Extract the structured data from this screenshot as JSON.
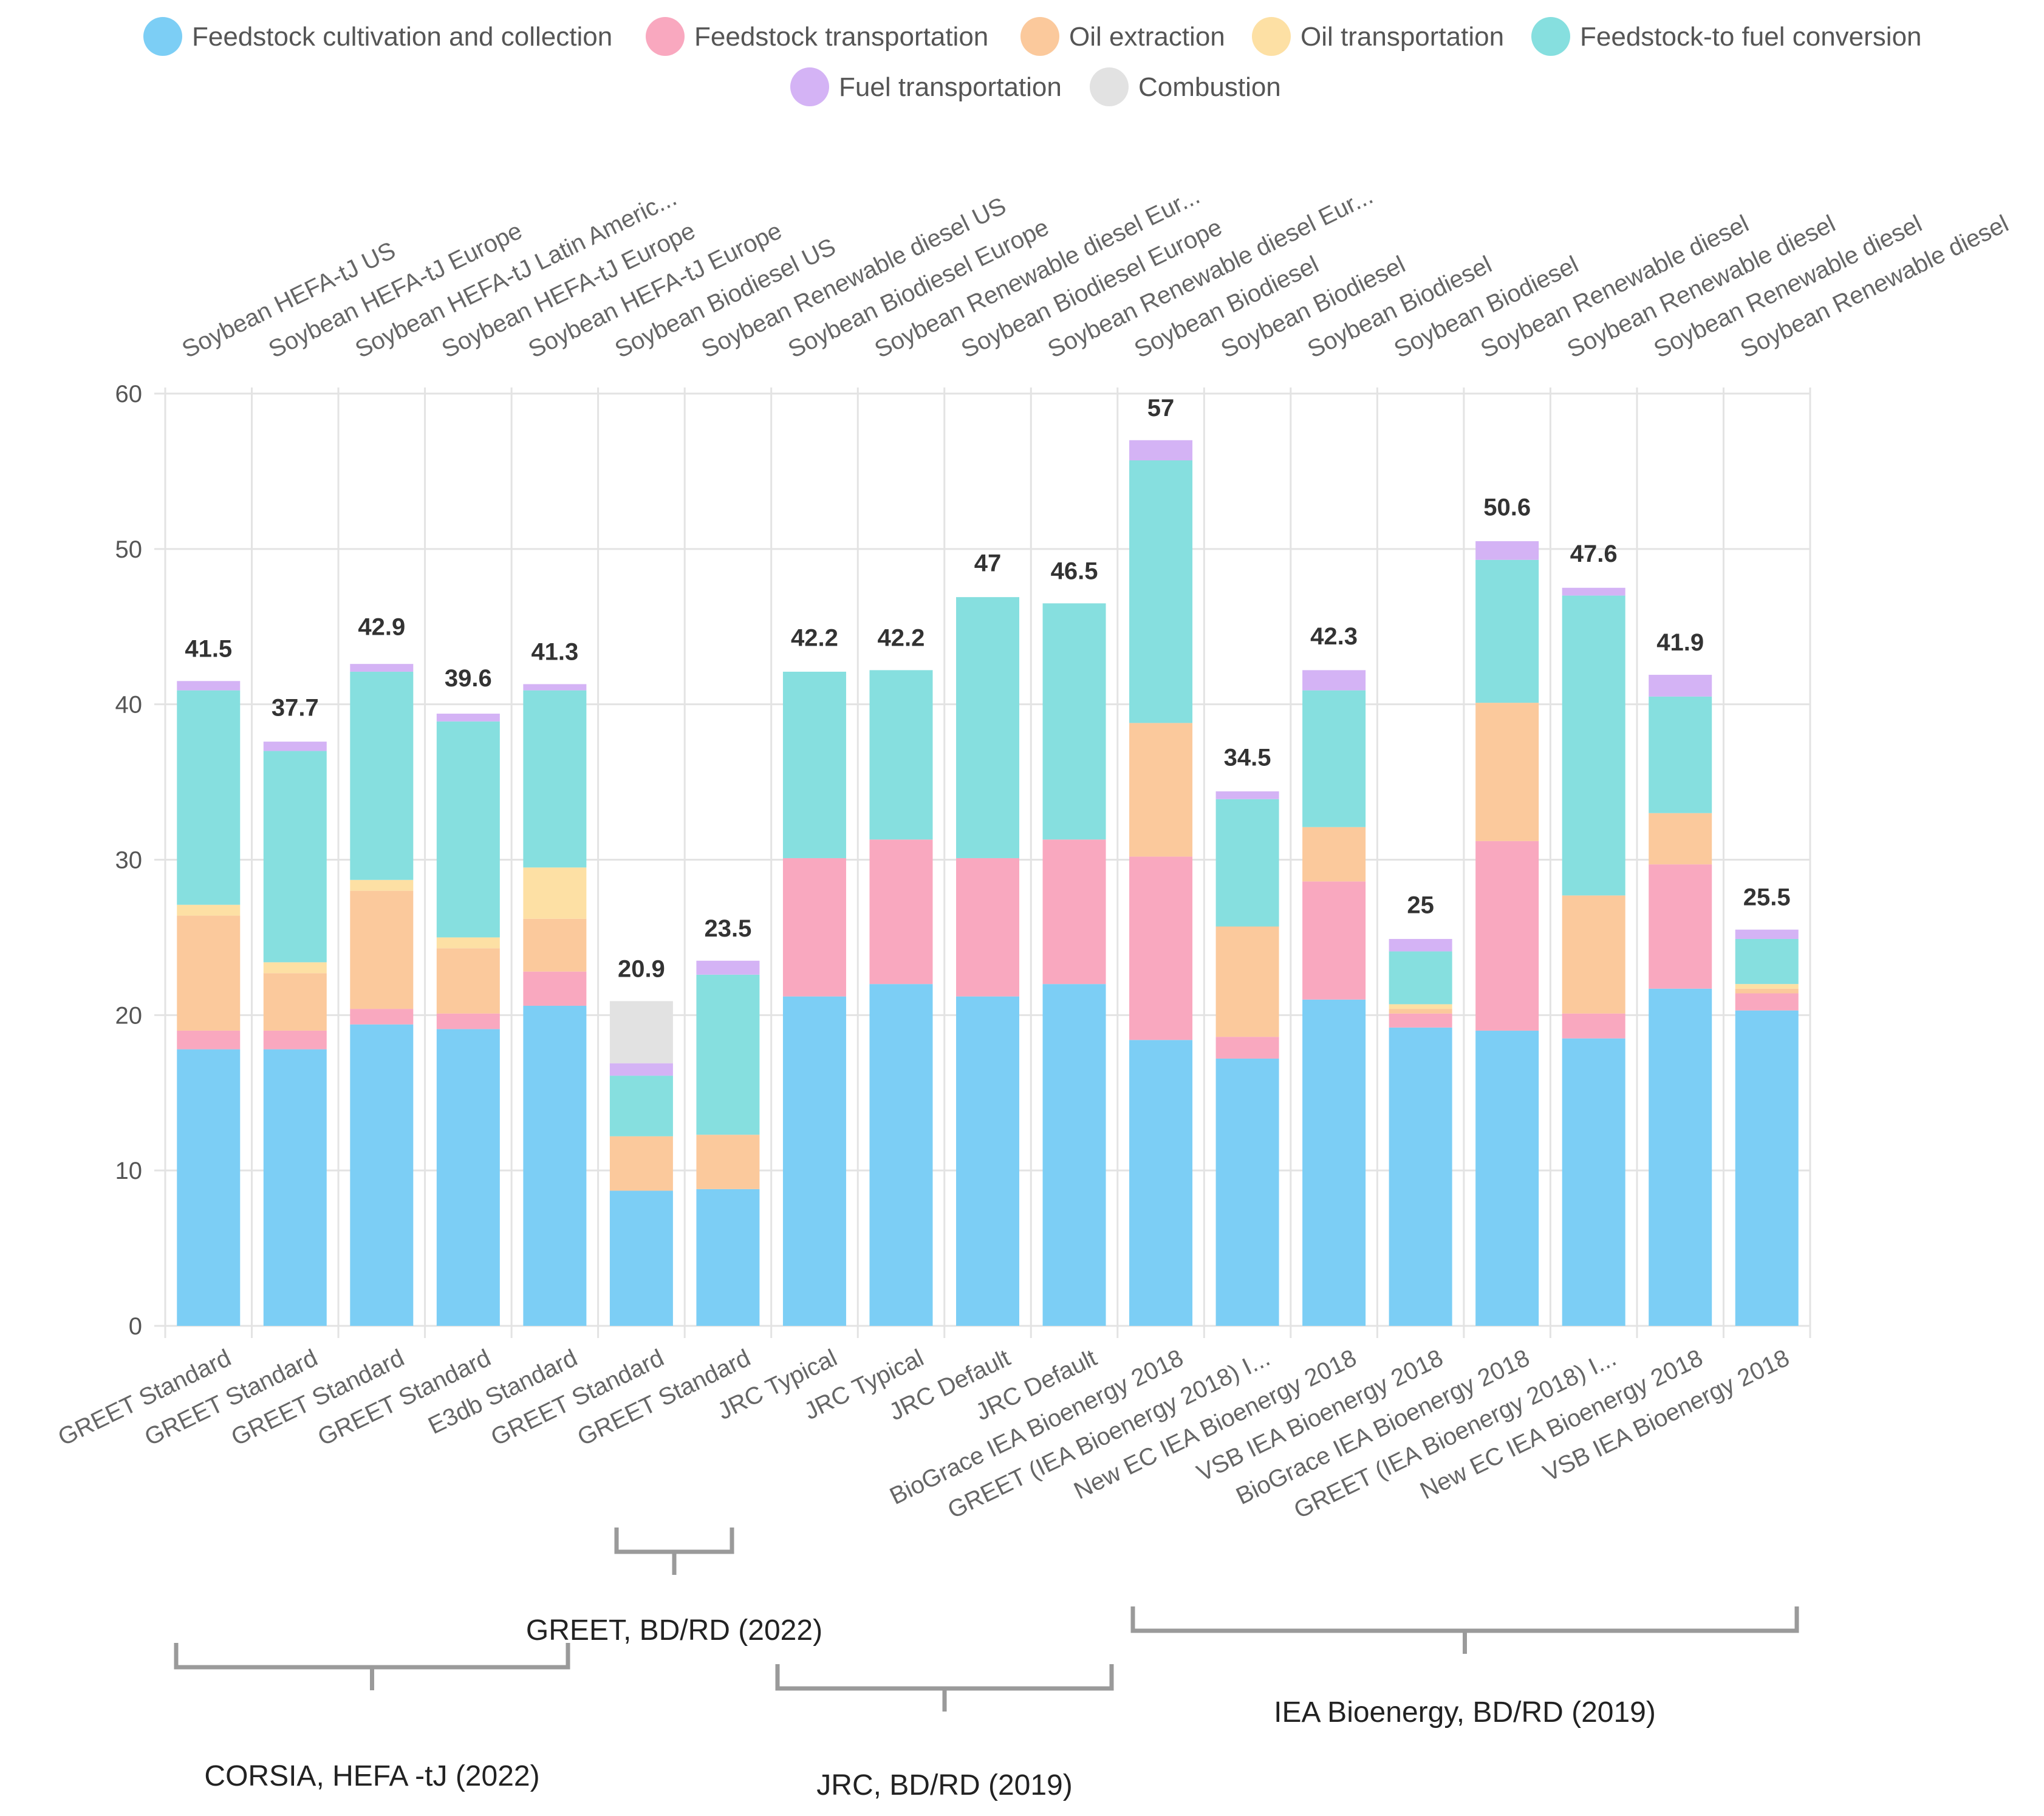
{
  "chart_data": {
    "type": "bar",
    "stacked": true,
    "ylim": [
      0,
      60
    ],
    "yticks": [
      0,
      10,
      20,
      30,
      40,
      50,
      60
    ],
    "grid": true,
    "legend_position": "top",
    "series": [
      {
        "name": "Feedstock cultivation and collection",
        "color": "#7ccef5",
        "values": [
          17.8,
          17.8,
          19.4,
          19.1,
          20.6,
          8.7,
          8.8,
          21.2,
          22.0,
          21.2,
          22.0,
          18.4,
          17.2,
          21.0,
          19.2,
          19.0,
          18.5,
          21.7,
          20.3
        ]
      },
      {
        "name": "Feedstock transportation",
        "color": "#f9a8bf",
        "values": [
          1.2,
          1.2,
          1.0,
          1.0,
          2.2,
          0,
          0,
          8.9,
          9.3,
          8.9,
          9.3,
          11.8,
          1.4,
          7.6,
          0.9,
          12.2,
          1.6,
          8.0,
          1.1
        ]
      },
      {
        "name": "Oil extraction",
        "color": "#fbc99c",
        "values": [
          7.4,
          3.7,
          7.6,
          4.2,
          3.4,
          3.5,
          3.5,
          0,
          0,
          0,
          0,
          8.6,
          7.1,
          3.5,
          0.3,
          8.9,
          7.6,
          3.3,
          0.3
        ]
      },
      {
        "name": "Oil transportation",
        "color": "#fde0a4",
        "values": [
          0.7,
          0.7,
          0.7,
          0.7,
          3.3,
          0,
          0,
          0,
          0,
          0,
          0,
          0,
          0,
          0,
          0.3,
          0,
          0,
          0,
          0.3
        ]
      },
      {
        "name": "Feedstock-to fuel conversion",
        "color": "#86dfdf",
        "values": [
          13.8,
          13.6,
          13.4,
          13.9,
          11.4,
          3.9,
          10.3,
          12.0,
          10.9,
          16.8,
          15.2,
          16.9,
          8.2,
          8.8,
          3.4,
          9.2,
          19.3,
          7.5,
          2.9
        ]
      },
      {
        "name": "Fuel transportation",
        "color": "#d4b3f5",
        "values": [
          0.6,
          0.6,
          0.5,
          0.5,
          0.4,
          0.8,
          0.9,
          0,
          0,
          0,
          0,
          1.3,
          0.5,
          1.3,
          0.8,
          1.2,
          0.5,
          1.4,
          0.6
        ]
      },
      {
        "name": "Combustion",
        "color": "#e2e2e2",
        "values": [
          0,
          0,
          0,
          0,
          0,
          4.0,
          0,
          0,
          0,
          0,
          0,
          0,
          0,
          0,
          0,
          0,
          0,
          0,
          0
        ]
      }
    ],
    "totals": [
      "41.5",
      "37.7",
      "42.9",
      "39.6",
      "41.3",
      "20.9",
      "23.5",
      "42.2",
      "42.2",
      "47",
      "46.5",
      "57",
      "34.5",
      "42.3",
      "25",
      "50.6",
      "47.6",
      "41.9",
      "25.5"
    ],
    "top_labels": [
      "Soybean HEFA-tJ US",
      "Soybean HEFA-tJ Europe",
      "Soybean HEFA-tJ Latin Americ...",
      "Soybean HEFA-tJ Europe",
      "Soybean HEFA-tJ Europe",
      "Soybean Biodiesel US",
      "Soybean Renewable diesel US",
      "Soybean Biodiesel Europe",
      "Soybean Renewable diesel Eur...",
      "Soybean Biodiesel Europe",
      "Soybean Renewable diesel Eur...",
      "Soybean Biodiesel",
      "Soybean Biodiesel",
      "Soybean Biodiesel",
      "Soybean Biodiesel",
      "Soybean Renewable diesel",
      "Soybean Renewable diesel",
      "Soybean Renewable diesel",
      "Soybean Renewable diesel"
    ],
    "categories": [
      "GREET Standard",
      "GREET Standard",
      "GREET Standard",
      "GREET Standard",
      "E3db Standard",
      "GREET Standard",
      "GREET Standard",
      "JRC Typical",
      "JRC Typical",
      "JRC Default",
      "JRC Default",
      "BioGrace IEA Bioenergy 2018",
      "GREET (IEA Bioenergy 2018) I...",
      "New EC IEA Bioenergy 2018",
      "VSB IEA Bioenergy 2018",
      "BioGrace IEA Bioenergy 2018",
      "GREET (IEA Bioenergy 2018) I...",
      "New EC IEA Bioenergy 2018",
      "VSB IEA Bioenergy 2018"
    ],
    "groups": [
      {
        "label": "CORSIA, HEFA -tJ (2022)",
        "from": 0,
        "to": 4,
        "brace": "below"
      },
      {
        "label": "GREET, BD/RD (2022)",
        "from": 5,
        "to": 6,
        "brace": "above"
      },
      {
        "label": "JRC, BD/RD (2019)",
        "from": 7,
        "to": 10,
        "brace": "below"
      },
      {
        "label": "IEA Bioenergy, BD/RD (2019)",
        "from": 11,
        "to": 18,
        "brace": "above"
      }
    ]
  }
}
